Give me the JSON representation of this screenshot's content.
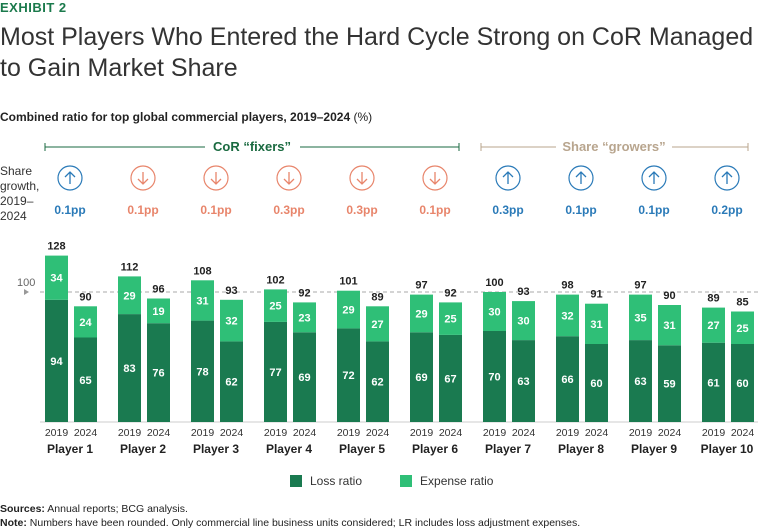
{
  "header": {
    "exhibit": "EXHIBIT 2",
    "title": "Most Players Who Entered the Hard Cycle Strong on CoR Managed to Gain Market Share",
    "subtitle_bold": "Combined ratio for top global commercial players, 2019–2024",
    "subtitle_unit": "(%)"
  },
  "groups": {
    "fixers_label": "CoR “fixers”",
    "growers_label": "Share “growers”",
    "share_growth_label": [
      "Share",
      "growth,",
      "2019–",
      "2024"
    ]
  },
  "legend": {
    "loss": "Loss ratio",
    "expense": "Expense ratio"
  },
  "colors": {
    "loss": "#1a7a50",
    "expense": "#2fbf77",
    "up": "#2a7ab8",
    "down": "#e8856b",
    "fixers_line": "#1a6a40",
    "growers_line": "#b8a58e"
  },
  "footer": {
    "sources_label": "Sources:",
    "sources_text": "Annual reports; BCG analysis.",
    "note_label": "Note:",
    "note_text": "Numbers have been rounded. Only commercial line business units considered; LR includes loss adjustment expenses."
  },
  "chart_data": {
    "type": "bar",
    "stacked": true,
    "reference_line": 100,
    "reference_label": "100",
    "ylim": [
      0,
      130
    ],
    "series_names": [
      "Loss ratio",
      "Expense ratio"
    ],
    "players": [
      {
        "name": "Player 1",
        "direction": "up",
        "share": "0.1pp",
        "bars": [
          {
            "year": "2019",
            "loss": 94,
            "expense": 34,
            "total": 128
          },
          {
            "year": "2024",
            "loss": 65,
            "expense": 24,
            "total": 90
          }
        ]
      },
      {
        "name": "Player 2",
        "direction": "down",
        "share": "0.1pp",
        "bars": [
          {
            "year": "2019",
            "loss": 83,
            "expense": 29,
            "total": 112
          },
          {
            "year": "2024",
            "loss": 76,
            "expense": 19,
            "total": 96
          }
        ]
      },
      {
        "name": "Player 3",
        "direction": "down",
        "share": "0.1pp",
        "bars": [
          {
            "year": "2019",
            "loss": 78,
            "expense": 31,
            "total": 108
          },
          {
            "year": "2024",
            "loss": 62,
            "expense": 32,
            "total": 93
          }
        ]
      },
      {
        "name": "Player 4",
        "direction": "down",
        "share": "0.3pp",
        "bars": [
          {
            "year": "2019",
            "loss": 77,
            "expense": 25,
            "total": 102
          },
          {
            "year": "2024",
            "loss": 69,
            "expense": 23,
            "total": 92
          }
        ]
      },
      {
        "name": "Player 5",
        "direction": "down",
        "share": "0.3pp",
        "bars": [
          {
            "year": "2019",
            "loss": 72,
            "expense": 29,
            "total": 101
          },
          {
            "year": "2024",
            "loss": 62,
            "expense": 27,
            "total": 89
          }
        ]
      },
      {
        "name": "Player 6",
        "direction": "down",
        "share": "0.1pp",
        "bars": [
          {
            "year": "2019",
            "loss": 69,
            "expense": 29,
            "total": 97
          },
          {
            "year": "2024",
            "loss": 67,
            "expense": 25,
            "total": 92
          }
        ]
      },
      {
        "name": "Player 7",
        "direction": "up",
        "share": "0.3pp",
        "bars": [
          {
            "year": "2019",
            "loss": 70,
            "expense": 30,
            "total": 100
          },
          {
            "year": "2024",
            "loss": 63,
            "expense": 30,
            "total": 93
          }
        ]
      },
      {
        "name": "Player 8",
        "direction": "up",
        "share": "0.1pp",
        "bars": [
          {
            "year": "2019",
            "loss": 66,
            "expense": 32,
            "total": 98
          },
          {
            "year": "2024",
            "loss": 60,
            "expense": 31,
            "total": 91
          }
        ]
      },
      {
        "name": "Player 9",
        "direction": "up",
        "share": "0.1pp",
        "bars": [
          {
            "year": "2019",
            "loss": 63,
            "expense": 35,
            "total": 97
          },
          {
            "year": "2024",
            "loss": 59,
            "expense": 31,
            "total": 90
          }
        ]
      },
      {
        "name": "Player 10",
        "direction": "up",
        "share": "0.2pp",
        "bars": [
          {
            "year": "2019",
            "loss": 61,
            "expense": 27,
            "total": 89
          },
          {
            "year": "2024",
            "loss": 60,
            "expense": 25,
            "total": 85
          }
        ]
      }
    ]
  }
}
